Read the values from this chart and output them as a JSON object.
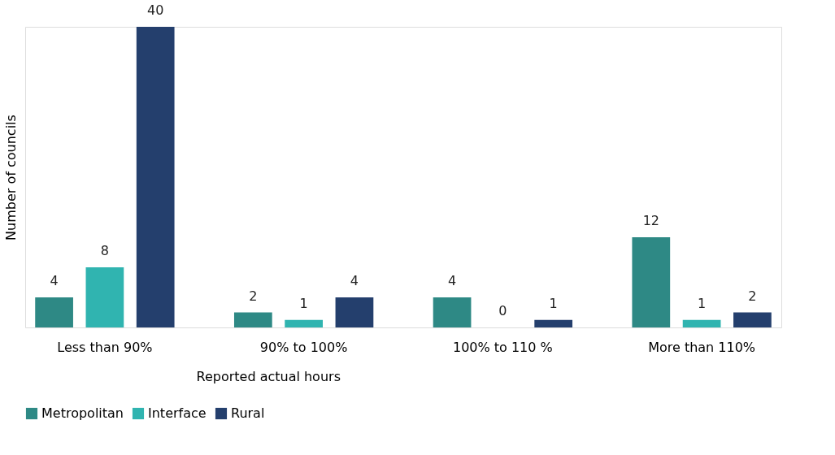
{
  "chart_data": {
    "type": "bar",
    "xlabel": "Reported actual hours",
    "ylabel": "Number of councils",
    "categories": [
      "Less than 90%",
      "90% to 100%",
      "100% to 110 %",
      "More than 110%"
    ],
    "series": [
      {
        "name": "Metropolitan",
        "color": "#2e8985",
        "values": [
          4,
          2,
          4,
          12
        ]
      },
      {
        "name": "Interface",
        "color": "#30b4b0",
        "values": [
          8,
          1,
          0,
          1
        ]
      },
      {
        "name": "Rural",
        "color": "#243f6d",
        "values": [
          40,
          4,
          1,
          2
        ]
      }
    ],
    "data_labels": true,
    "tick_labels": "x",
    "grid": false,
    "legend": "bottom"
  }
}
